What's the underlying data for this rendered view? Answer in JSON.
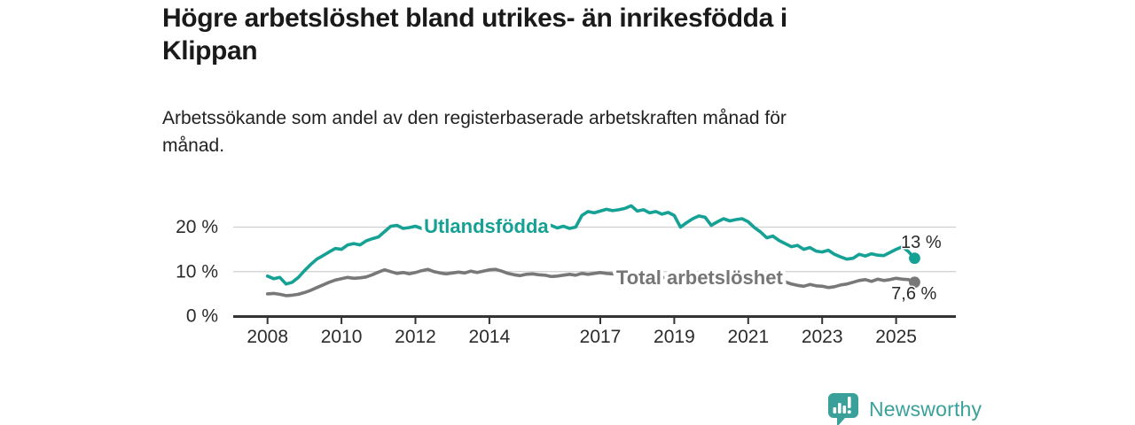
{
  "header": {
    "title": "Högre arbetslöshet bland utrikes- än inrikesfödda i\nKlippan",
    "subtitle": "Arbetssökande som andel av den registerbaserade arbetskraften månad för\nmånad."
  },
  "footer": {
    "brand": "Newsworthy",
    "brand_color": "#3aa09a",
    "logo_icon": "bar-chart-speech-bubble"
  },
  "colors": {
    "foreign_born_line": "#16a195",
    "total_line": "#787878",
    "total_label": "#767676",
    "axis": "#333333",
    "grid": "#cfcfcf",
    "end_label_text": "#2a2a2a"
  },
  "chart_data": {
    "type": "line",
    "title": "Högre arbetslöshet bland utrikes- än inrikesfödda i Klippan",
    "subtitle": "Arbetssökande som andel av den registerbaserade arbetskraften månad för månad.",
    "unit": "%",
    "grid": "horizontal",
    "x_start": 2008,
    "x_step": 0.1666667,
    "xlim": [
      2007.1,
      2026.6
    ],
    "ylim": [
      0,
      26
    ],
    "x_ticks": [
      {
        "v": 2008,
        "label": "2008"
      },
      {
        "v": 2010,
        "label": "2010"
      },
      {
        "v": 2012,
        "label": "2012"
      },
      {
        "v": 2014,
        "label": "2014"
      },
      {
        "v": 2017,
        "label": "2017"
      },
      {
        "v": 2019,
        "label": "2019"
      },
      {
        "v": 2021,
        "label": "2021"
      },
      {
        "v": 2023,
        "label": "2023"
      },
      {
        "v": 2025,
        "label": "2025"
      }
    ],
    "y_ticks": [
      {
        "v": 0,
        "label": "0 %"
      },
      {
        "v": 10,
        "label": "10 %"
      },
      {
        "v": 20,
        "label": "20 %"
      }
    ],
    "series": [
      {
        "name": "Utlandsfödda",
        "color": "#16a195",
        "end_label": "13 %",
        "values": [
          9.0,
          8.4,
          8.7,
          7.2,
          7.6,
          8.7,
          10.2,
          11.6,
          12.8,
          13.6,
          14.4,
          15.2,
          15.0,
          16.0,
          16.3,
          16.0,
          16.9,
          17.4,
          17.8,
          19.0,
          20.2,
          20.4,
          19.7,
          19.9,
          20.2,
          19.7,
          19.3,
          19.8,
          20.1,
          19.7,
          20.0,
          20.3,
          19.9,
          20.2,
          19.8,
          20.1,
          19.8,
          20.2,
          19.9,
          19.6,
          19.9,
          19.5,
          19.8,
          20.1,
          19.7,
          20.0,
          20.4,
          19.8,
          20.2,
          19.7,
          20.0,
          22.6,
          23.5,
          23.2,
          23.6,
          24.0,
          23.7,
          23.9,
          24.2,
          24.8,
          23.6,
          23.9,
          23.2,
          23.5,
          22.9,
          23.3,
          22.6,
          20.0,
          21.0,
          21.9,
          22.5,
          22.2,
          20.4,
          21.2,
          21.9,
          21.4,
          21.7,
          21.9,
          21.2,
          19.9,
          18.9,
          17.6,
          18.0,
          17.0,
          16.3,
          15.6,
          15.9,
          15.0,
          15.4,
          14.6,
          14.4,
          14.8,
          13.9,
          13.3,
          12.8,
          13.0,
          13.9,
          13.5,
          14.0,
          13.7,
          13.6,
          14.3,
          15.0,
          15.6,
          14.5,
          13.0
        ]
      },
      {
        "name": "Total arbetslöshet",
        "color": "#787878",
        "end_label": "7,6 %",
        "values": [
          5.0,
          5.1,
          4.9,
          4.6,
          4.7,
          4.9,
          5.3,
          5.8,
          6.4,
          7.0,
          7.6,
          8.1,
          8.4,
          8.7,
          8.5,
          8.6,
          8.8,
          9.3,
          9.9,
          10.4,
          10.0,
          9.6,
          9.8,
          9.5,
          9.8,
          10.2,
          10.5,
          10.0,
          9.7,
          9.5,
          9.7,
          9.9,
          9.7,
          10.1,
          9.8,
          10.1,
          10.4,
          10.5,
          10.1,
          9.6,
          9.3,
          9.1,
          9.4,
          9.5,
          9.3,
          9.2,
          8.9,
          9.0,
          9.2,
          9.4,
          9.2,
          9.6,
          9.4,
          9.6,
          9.8,
          9.6,
          9.5,
          9.6,
          9.8,
          9.5,
          9.2,
          9.1,
          9.0,
          8.8,
          8.7,
          8.6,
          8.5,
          8.4,
          8.4,
          8.5,
          8.6,
          8.8,
          8.9,
          9.2,
          9.5,
          9.4,
          9.3,
          9.1,
          9.0,
          8.8,
          8.6,
          8.4,
          8.2,
          8.1,
          7.7,
          7.2,
          6.9,
          6.7,
          7.1,
          6.8,
          6.7,
          6.4,
          6.6,
          7.0,
          7.2,
          7.6,
          8.0,
          8.2,
          7.8,
          8.3,
          8.0,
          8.2,
          8.5,
          8.3,
          8.2,
          7.6
        ]
      }
    ],
    "series_labels": [
      {
        "text": "Utlandsfödda",
        "x": 2012.23,
        "y": 20.2,
        "color": "#16a195"
      },
      {
        "text": "Total arbetslöshet",
        "x": 2017.43,
        "y": 8.65,
        "color": "#767676"
      }
    ],
    "end_labels": [
      {
        "text": "13 %",
        "x": 2025.13,
        "y": 16.5
      },
      {
        "text": "7,6 %",
        "x": 2024.87,
        "y": 5.0
      }
    ]
  }
}
